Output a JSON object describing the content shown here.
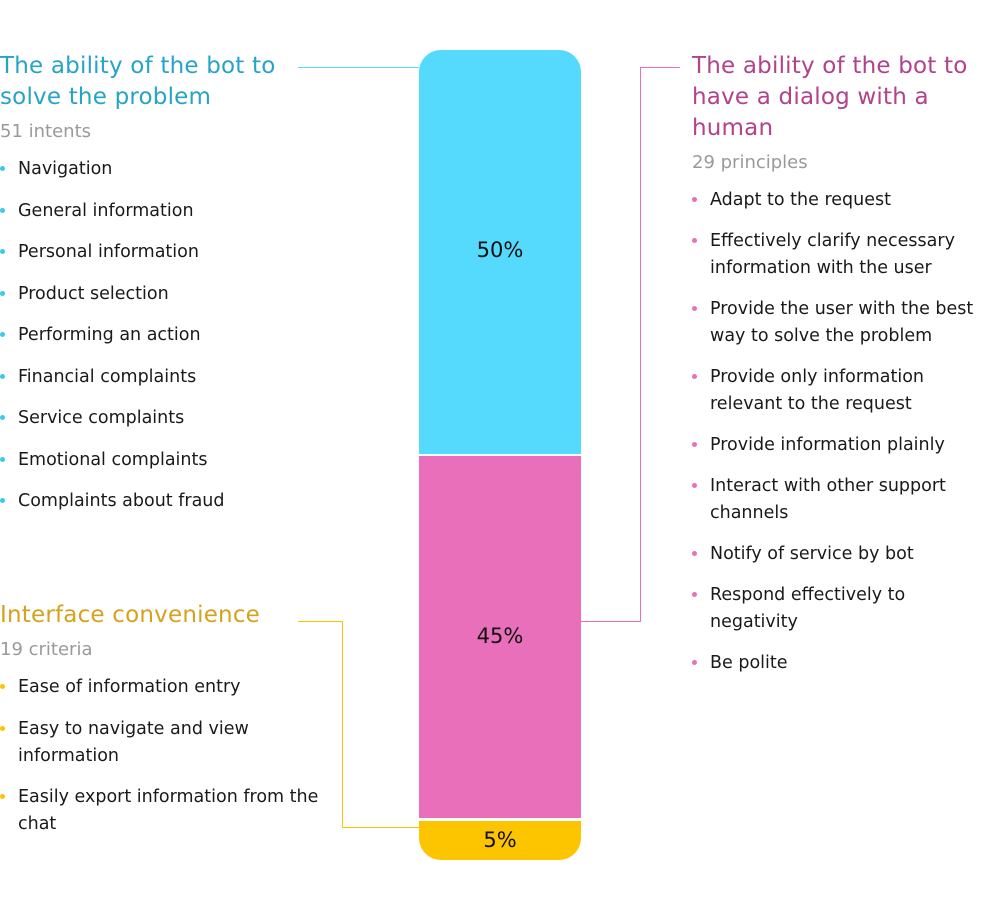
{
  "chart_data": {
    "type": "bar",
    "stacked": true,
    "categories": [
      "The ability of the bot to solve the problem",
      "The ability of the bot to have a dialog with a human",
      "Interface convenience"
    ],
    "values": [
      50,
      45,
      5
    ],
    "data_labels": [
      "50%",
      "45%",
      "5%"
    ],
    "colors": [
      "#55d9fd",
      "#ea6fbb",
      "#fdc400"
    ]
  },
  "left_top": {
    "title": "The ability of the bot to solve the problem",
    "count": "51 intents",
    "color": "#26a4c6",
    "dot_color": "#3ec8ea",
    "items": [
      "Navigation",
      "General information",
      "Personal information",
      "Product selection",
      "Performing an action",
      "Financial complaints",
      "Service complaints",
      "Emotional complaints",
      "Complaints about fraud"
    ]
  },
  "left_bottom": {
    "title": "Interface convenience",
    "count": "19 criteria",
    "color": "#d6a21e",
    "dot_color": "#fdc400",
    "items": [
      "Ease of information entry",
      "Easy to navigate and view information",
      "Easily export information from the chat"
    ]
  },
  "right": {
    "title": "The ability of the bot to have a dialog with a human",
    "count": "29 principles",
    "color": "#b1428b",
    "dot_color": "#ea6fbb",
    "items": [
      "Adapt to the request",
      "Effectively clarify necessary information with the user",
      "Provide the user with the best way to solve the problem",
      "Provide only information relevant to the request",
      "Provide information plainly",
      "Interact with other support channels",
      "Notify of service by bot",
      "Respond effectively to negativity",
      "Be polite"
    ]
  }
}
